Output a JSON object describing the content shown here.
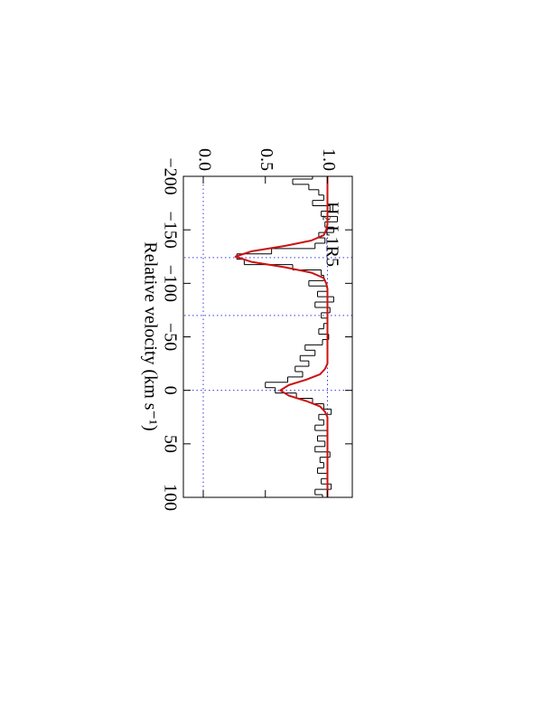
{
  "chart_data": {
    "type": "line",
    "annotation": "H₂ L1R5",
    "x_label": "Relative velocity (km s⁻¹)",
    "xlim": [
      -200,
      100
    ],
    "xticks": [
      {
        "value": -200,
        "label": "−200"
      },
      {
        "value": -150,
        "label": "−150"
      },
      {
        "value": -100,
        "label": "−100"
      },
      {
        "value": -50,
        "label": "−50"
      },
      0,
      50,
      100
    ],
    "ylim": [
      -0.16,
      1.2
    ],
    "yticks": [
      {
        "value": 0,
        "label": "0.0"
      },
      0.5,
      {
        "value": 1,
        "label": "1.0"
      }
    ],
    "vlines": [
      -124,
      -70,
      0
    ],
    "hlines": [
      0,
      1
    ],
    "ref_color": "#3a3adf",
    "x": [
      -200,
      -195,
      -190,
      -185,
      -180,
      -175,
      -170,
      -165,
      -160,
      -155,
      -150,
      -145,
      -140,
      -135,
      -130,
      -125,
      -120,
      -115,
      -110,
      -105,
      -100,
      -95,
      -90,
      -85,
      -80,
      -75,
      -70,
      -65,
      -60,
      -55,
      -50,
      -45,
      -40,
      -35,
      -30,
      -25,
      -20,
      -15,
      -10,
      -5,
      0,
      5,
      10,
      15,
      20,
      25,
      30,
      35,
      40,
      45,
      50,
      55,
      60,
      65,
      70,
      75,
      80,
      85,
      90,
      95,
      100
    ],
    "series": [
      {
        "style": "steps",
        "color": "#000000",
        "values": [
          0.88,
          0.72,
          0.85,
          0.93,
          0.97,
          0.88,
          1.02,
          0.95,
          1.08,
          0.98,
          1.05,
          0.93,
          0.98,
          0.9,
          0.55,
          0.27,
          0.33,
          0.72,
          0.95,
          0.97,
          0.85,
          1.0,
          0.92,
          1.05,
          0.9,
          1.02,
          0.95,
          1.0,
          0.97,
          0.93,
          1.01,
          0.96,
          0.82,
          0.9,
          0.78,
          0.85,
          0.74,
          0.8,
          0.68,
          0.5,
          0.58,
          0.75,
          0.88,
          0.97,
          1.03,
          0.93,
          0.97,
          0.9,
          1.0,
          0.92,
          0.98,
          0.9,
          1.02,
          0.94,
          0.97,
          0.92,
          1.0,
          0.95,
          1.03,
          0.9,
          0.96
        ]
      },
      {
        "style": "line",
        "color": "#cc1111",
        "values": [
          1,
          1,
          1,
          1,
          1,
          1,
          1,
          1,
          1,
          1,
          0.99,
          0.97,
          0.87,
          0.66,
          0.39,
          0.26,
          0.39,
          0.66,
          0.87,
          0.97,
          0.99,
          1,
          1,
          1,
          1,
          1,
          1,
          1,
          1,
          1,
          1,
          1,
          1,
          1,
          1,
          1,
          0.98,
          0.94,
          0.83,
          0.69,
          0.62,
          0.69,
          0.83,
          0.94,
          0.98,
          1,
          1,
          1,
          1,
          1,
          1,
          1,
          1,
          1,
          1,
          1,
          1,
          1,
          1,
          1,
          1
        ]
      }
    ]
  }
}
